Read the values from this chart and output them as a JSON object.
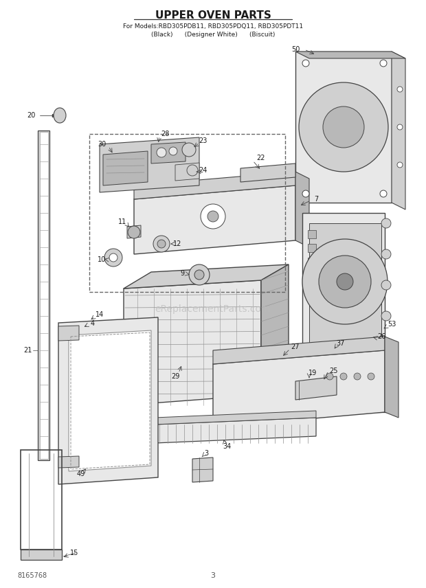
{
  "title_line1": "UPPER OVEN PARTS",
  "title_line2": "For Models:RBD305PDB11, RBD305PDQ11, RBD305PDT11",
  "title_line3": "(Black)      (Designer White)      (Biscuit)",
  "watermark": "eReplacementParts.com",
  "bottom_left": "8165768",
  "bottom_center": "3",
  "bg": "#ffffff",
  "fg": "#1a1a1a",
  "gray1": "#e8e8e8",
  "gray2": "#d0d0d0",
  "gray3": "#b8b8b8",
  "gray4": "#909090",
  "edge": "#444444"
}
